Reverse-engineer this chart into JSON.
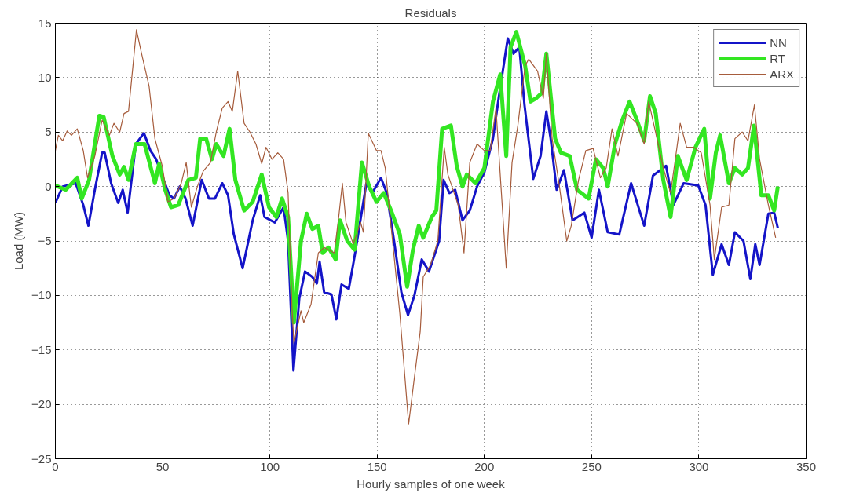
{
  "chart_data": {
    "type": "line",
    "title": "Residuals",
    "xlabel": "Hourly samples of one week",
    "ylabel": "Load (MW)",
    "xlim": [
      0,
      350
    ],
    "ylim": [
      -25,
      15
    ],
    "xticks": [
      0,
      50,
      100,
      150,
      200,
      250,
      300,
      350
    ],
    "yticks": [
      -25,
      -20,
      -15,
      -10,
      -5,
      0,
      5,
      10,
      15
    ],
    "grid": true,
    "legend": "top right",
    "series": [
      {
        "name": "NN",
        "color": "#1414c8",
        "x": [
          0,
          3.4,
          9.5,
          13,
          15.4,
          18.4,
          21.8,
          23,
          26,
          29.3,
          31.4,
          33.7,
          37.5,
          41.3,
          44.3,
          47,
          50.5,
          53.2,
          55.3,
          58,
          60.7,
          64,
          68.2,
          71.6,
          74.4,
          77.8,
          80.5,
          83.2,
          87.3,
          92,
          95.5,
          97.5,
          102.3,
          106.4,
          108.5,
          111,
          113.7,
          116.4,
          119.8,
          121.9,
          123.2,
          125.3,
          128.7,
          131,
          133.4,
          136.8,
          139.5,
          145,
          147.7,
          151.8,
          154.5,
          157.9,
          161.3,
          164.4,
          167.4,
          170.8,
          174.2,
          178.9,
          181,
          183.7,
          186.4,
          189.8,
          193.2,
          196.6,
          200,
          204,
          206.8,
          210.9,
          213.6,
          216.3,
          218.7,
          222.8,
          226.2,
          228.9,
          230.9,
          233.7,
          237.1,
          241.1,
          246.6,
          250,
          253.4,
          257.5,
          262.9,
          268.4,
          274.5,
          278.6,
          284.7,
          288.1,
          292.9,
          299.7,
          303.1,
          306.5,
          310.6,
          314,
          316.8,
          320.8,
          324,
          326.3,
          328.3,
          332.4,
          335.1,
          336.8
        ],
        "values": [
          -1.5,
          0,
          0.3,
          -1.7,
          -3.6,
          -0.3,
          3.1,
          3.1,
          0.3,
          -1.5,
          -0.3,
          -2.4,
          3.9,
          4.9,
          3.3,
          2.5,
          0.6,
          -0.8,
          -1.1,
          0,
          -1.1,
          -3.6,
          0.6,
          -1.1,
          -1.1,
          0.3,
          -0.8,
          -4.4,
          -7.5,
          -3.1,
          -0.8,
          -2.8,
          -3.3,
          -1.9,
          -5,
          -16.9,
          -10.3,
          -7.8,
          -8.3,
          -8.9,
          -6.9,
          -9.7,
          -9.9,
          -12.2,
          -9,
          -9.4,
          -6.4,
          0.3,
          -0.6,
          0.8,
          -0.6,
          -5,
          -9.7,
          -11.8,
          -10,
          -6.7,
          -7.8,
          -5,
          0.6,
          -0.6,
          -0.3,
          -3.1,
          -2.2,
          0,
          1.3,
          4.4,
          8.3,
          13.6,
          12.2,
          12.8,
          7.5,
          0.7,
          2.8,
          6.9,
          4.4,
          -0.3,
          1.5,
          -3.1,
          -2.4,
          -4.7,
          -0.3,
          -4.2,
          -4.4,
          0.3,
          -3.6,
          1,
          1.9,
          -1.7,
          0.3,
          0.1,
          -1.7,
          -8.1,
          -5.3,
          -7.2,
          -4.2,
          -5,
          -8.5,
          -5.3,
          -7.2,
          -2.5,
          -2.4,
          -3.8
        ]
      },
      {
        "name": "RT",
        "color": "#33e622",
        "x": [
          0,
          4.8,
          10.2,
          12.3,
          15.7,
          20.5,
          22.5,
          26.6,
          30,
          32,
          34.1,
          37.5,
          41.6,
          46.4,
          48.4,
          51.2,
          53.9,
          57.3,
          62,
          65.5,
          67.5,
          70.3,
          73,
          75,
          78.4,
          81.2,
          83.9,
          88,
          92,
          96.2,
          99.6,
          103,
          105.7,
          108.5,
          111.2,
          114.5,
          117.2,
          119.8,
          122.6,
          124.6,
          127.3,
          130.7,
          132.7,
          136.1,
          139.5,
          142.9,
          146.3,
          149.7,
          153.1,
          156.5,
          160.6,
          164,
          166.7,
          169.4,
          171.5,
          175.5,
          177.6,
          180.3,
          184.4,
          187.1,
          189.8,
          191.8,
          195.9,
          200,
          204,
          207.4,
          210.2,
          212.2,
          214.9,
          219,
          221.5,
          224.1,
          226.8,
          228.9,
          233,
          235.7,
          239.8,
          243.2,
          248.6,
          252,
          255.4,
          257.5,
          260.9,
          264.3,
          267.7,
          271.1,
          274.5,
          277.2,
          279.9,
          283.4,
          286.8,
          290.2,
          294.3,
          298.4,
          302.5,
          305.2,
          307.9,
          309.9,
          314,
          316.8,
          320.2,
          322.9,
          325.7,
          329.1,
          332.4,
          335.1,
          336.8
        ],
        "values": [
          0.1,
          -0.3,
          0.8,
          -1.1,
          0.6,
          6.5,
          6.4,
          2.8,
          1.1,
          1.8,
          0.6,
          3.9,
          3.9,
          0.3,
          2.1,
          -0.3,
          -1.9,
          -1.7,
          0.6,
          0.8,
          4.4,
          4.4,
          2.5,
          3.9,
          2.8,
          5.3,
          0.6,
          -2.2,
          -1.4,
          1.1,
          -1.9,
          -2.8,
          -1.1,
          -2.8,
          -12.5,
          -5,
          -2.5,
          -3.9,
          -3.6,
          -6.1,
          -5.6,
          -6.7,
          -3.1,
          -5,
          -5.8,
          2.2,
          0,
          -1.4,
          -0.6,
          -2.2,
          -4.4,
          -9.2,
          -5.8,
          -3.6,
          -4.7,
          -2.8,
          -2.2,
          5.3,
          5.6,
          1.9,
          0,
          1.1,
          0.3,
          1.7,
          7.8,
          10.3,
          2.8,
          12.8,
          14.2,
          11.1,
          7.8,
          8.1,
          8.6,
          12.2,
          4.4,
          3.1,
          2.8,
          -0.3,
          -1.1,
          2.5,
          1.7,
          0,
          3.9,
          6.1,
          7.8,
          6.1,
          4.2,
          8.3,
          6.7,
          0.6,
          -2.8,
          2.8,
          0.6,
          3.6,
          5.3,
          -1.1,
          3.1,
          4.7,
          0.3,
          1.7,
          1.1,
          1.7,
          5.6,
          -0.8,
          -0.8,
          -2.2,
          0
        ]
      },
      {
        "name": "ARX",
        "color": "#a65c3c",
        "x": [
          0,
          1.4,
          3.4,
          5.5,
          7.5,
          10.2,
          13,
          15,
          18.4,
          21.8,
          25.2,
          27.3,
          30,
          32,
          34.1,
          37.8,
          40.2,
          43.7,
          46.4,
          49.8,
          52.5,
          55.3,
          58.7,
          61,
          63.4,
          66.2,
          68.9,
          72.3,
          75,
          77.8,
          80.5,
          82.5,
          85,
          88,
          90.7,
          93.5,
          96.2,
          98.2,
          101,
          103.7,
          106.4,
          108.5,
          110.3,
          111.2,
          114.5,
          115.8,
          119.2,
          122.6,
          125.3,
          130,
          132.1,
          133.8,
          135.5,
          138.9,
          142.3,
          143.6,
          145.9,
          149.7,
          151.8,
          153.8,
          157.2,
          160.6,
          164.7,
          167.4,
          170.1,
          171.5,
          174.9,
          178.3,
          181.3,
          183,
          187.8,
          190.5,
          193.2,
          196.6,
          200,
          202.7,
          205.4,
          210.2,
          212.9,
          215.6,
          219,
          220.7,
          224.8,
          227.5,
          228.9,
          231.6,
          235,
          238.4,
          240.5,
          243.9,
          247.3,
          250.7,
          254.1,
          256.8,
          259.5,
          262.3,
          266.3,
          271.1,
          274.5,
          276.6,
          280.7,
          283.4,
          286.8,
          288.8,
          291.3,
          294.3,
          297.7,
          301.1,
          305.2,
          307.2,
          310.6,
          314,
          316.8,
          320.2,
          322.9,
          325.9,
          328.3,
          332.4,
          335.8
        ],
        "values": [
          3.3,
          4.7,
          4.2,
          5.1,
          4.7,
          5.3,
          3.3,
          0.8,
          2.8,
          6.1,
          4.7,
          5.8,
          5,
          6.7,
          6.9,
          14.4,
          12.2,
          9.2,
          4.4,
          1.9,
          -1.4,
          -1.1,
          0.3,
          2.2,
          -1.9,
          0,
          1.4,
          2.2,
          5,
          7.2,
          7.8,
          6.9,
          10.6,
          5.8,
          5,
          3.9,
          2.1,
          3.6,
          2.5,
          3.1,
          2.5,
          -0.6,
          -11,
          -14.4,
          -11.4,
          -12.5,
          -10.8,
          -6.1,
          -5.6,
          -6.1,
          -2.8,
          0.3,
          -3.3,
          -5.3,
          -3.3,
          -4.2,
          4.9,
          3.3,
          3.3,
          1.7,
          -5,
          -11.7,
          -21.8,
          -17.5,
          -13.3,
          -8.3,
          -7.2,
          -5,
          3.6,
          1.1,
          -1.7,
          -6.1,
          2.2,
          3.9,
          3.3,
          3.3,
          7.2,
          -7.5,
          2.2,
          5.6,
          11.1,
          11.7,
          10.6,
          8.1,
          12.2,
          4.4,
          0,
          -5,
          -3.6,
          0.6,
          3.3,
          3.5,
          0.8,
          1.7,
          5.3,
          2.8,
          6.7,
          5.8,
          3.9,
          7.8,
          4.2,
          1.7,
          -0.6,
          2.2,
          5.8,
          3.6,
          3.6,
          3.1,
          -1.7,
          -6.7,
          -1.9,
          -1.7,
          4.4,
          5,
          4.2,
          7.5,
          2.5,
          -1.7,
          -4.7
        ]
      }
    ]
  }
}
